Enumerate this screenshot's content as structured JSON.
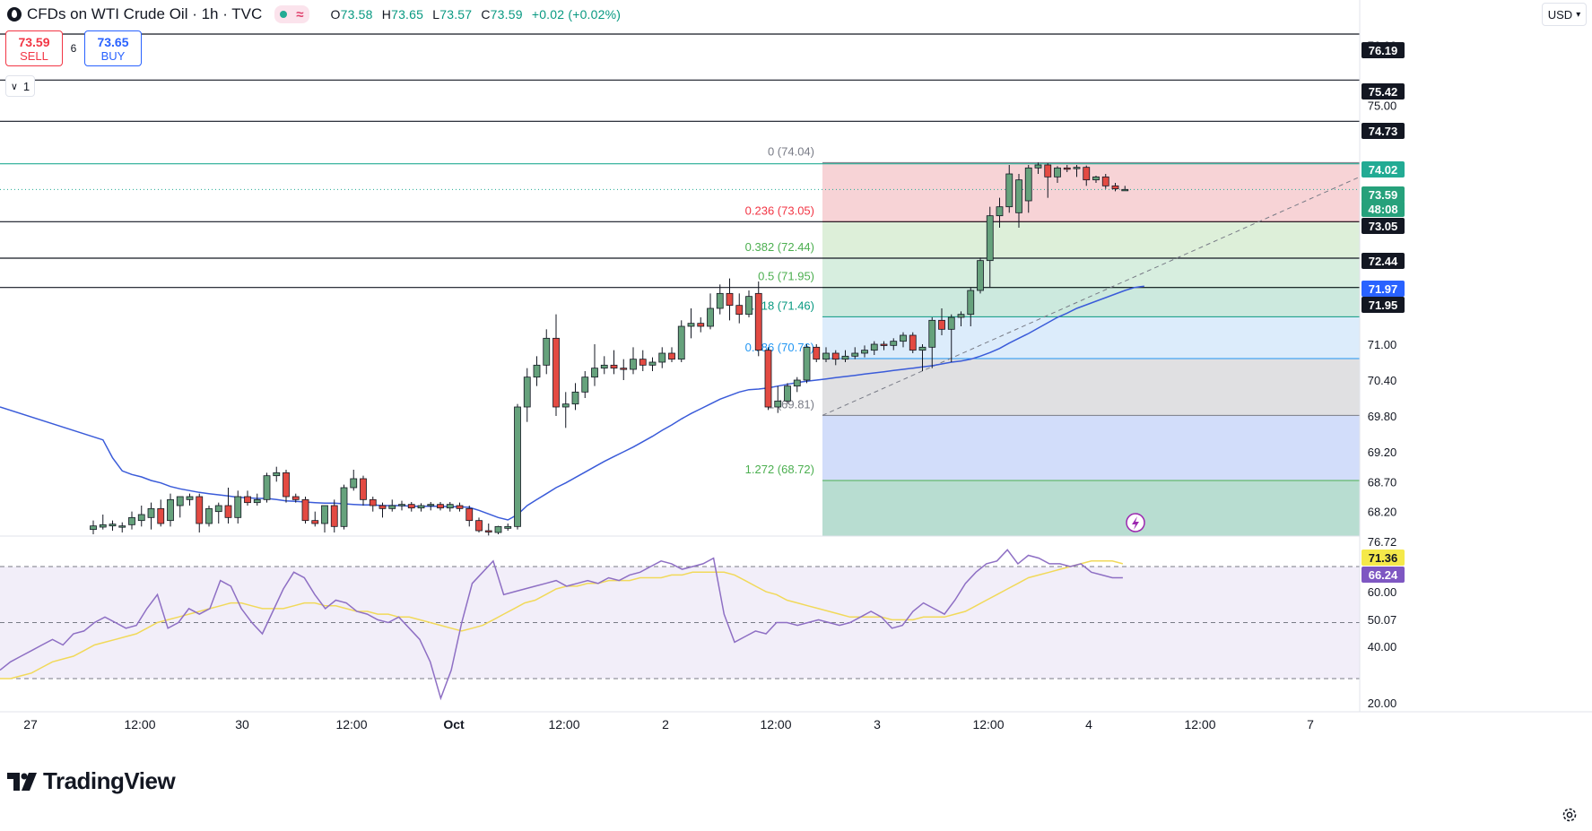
{
  "header": {
    "title": "CFDs on WTI Crude Oil · 1h · TVC",
    "ohlc": {
      "o_label": "O",
      "o": "73.58",
      "h_label": "H",
      "h": "73.65",
      "l_label": "L",
      "l": "73.57",
      "c_label": "C",
      "c": "73.59",
      "change": "+0.02 (+0.02%)"
    }
  },
  "trade": {
    "sell_price": "73.59",
    "sell_label": "SELL",
    "spread": "6",
    "buy_price": "73.65",
    "buy_label": "BUY"
  },
  "indicators_toggle": {
    "count": "1"
  },
  "currency": "USD",
  "brand": "TradingView",
  "colors": {
    "up": "#66a27c",
    "down": "#e34a42",
    "ma": "#3a5bd9",
    "rsi": "#8e6fc4",
    "rsi_ma": "#f1d95a",
    "accent": "#22ab94"
  },
  "chart_data": {
    "type": "candlestick",
    "price_axis": {
      "ticks": [
        "76.00",
        "75.00",
        "71.00",
        "70.40",
        "69.80",
        "69.20",
        "68.70",
        "68.20"
      ]
    },
    "x_labels": [
      "27",
      "12:00",
      "30",
      "12:00",
      "Oct",
      "12:00",
      "2",
      "12:00",
      "3",
      "12:00",
      "4",
      "12:00",
      "7"
    ],
    "candles": [
      {
        "o": 67.9,
        "h": 68.05,
        "l": 67.82,
        "c": 67.96
      },
      {
        "o": 67.94,
        "h": 68.15,
        "l": 67.9,
        "c": 67.98
      },
      {
        "o": 67.96,
        "h": 68.05,
        "l": 67.88,
        "c": 67.99
      },
      {
        "o": 67.95,
        "h": 68.02,
        "l": 67.85,
        "c": 67.96
      },
      {
        "o": 67.98,
        "h": 68.2,
        "l": 67.9,
        "c": 68.1
      },
      {
        "o": 68.05,
        "h": 68.3,
        "l": 67.95,
        "c": 68.15
      },
      {
        "o": 68.1,
        "h": 68.35,
        "l": 67.9,
        "c": 68.25
      },
      {
        "o": 68.25,
        "h": 68.4,
        "l": 67.95,
        "c": 68.0
      },
      {
        "o": 68.05,
        "h": 68.5,
        "l": 67.95,
        "c": 68.4
      },
      {
        "o": 68.3,
        "h": 68.45,
        "l": 68.1,
        "c": 68.45
      },
      {
        "o": 68.4,
        "h": 68.5,
        "l": 68.3,
        "c": 68.45
      },
      {
        "o": 68.45,
        "h": 68.5,
        "l": 67.85,
        "c": 68.0
      },
      {
        "o": 68.0,
        "h": 68.3,
        "l": 67.95,
        "c": 68.25
      },
      {
        "o": 68.2,
        "h": 68.35,
        "l": 68.0,
        "c": 68.3
      },
      {
        "o": 68.3,
        "h": 68.6,
        "l": 68.0,
        "c": 68.1
      },
      {
        "o": 68.1,
        "h": 68.55,
        "l": 68.0,
        "c": 68.45
      },
      {
        "o": 68.45,
        "h": 68.55,
        "l": 68.3,
        "c": 68.35
      },
      {
        "o": 68.35,
        "h": 68.5,
        "l": 68.3,
        "c": 68.4
      },
      {
        "o": 68.4,
        "h": 68.85,
        "l": 68.35,
        "c": 68.8
      },
      {
        "o": 68.8,
        "h": 68.95,
        "l": 68.7,
        "c": 68.85
      },
      {
        "o": 68.85,
        "h": 68.9,
        "l": 68.35,
        "c": 68.45
      },
      {
        "o": 68.45,
        "h": 68.5,
        "l": 68.35,
        "c": 68.4
      },
      {
        "o": 68.4,
        "h": 68.45,
        "l": 68.0,
        "c": 68.05
      },
      {
        "o": 68.05,
        "h": 68.2,
        "l": 67.95,
        "c": 68.0
      },
      {
        "o": 68.0,
        "h": 68.3,
        "l": 67.85,
        "c": 68.3
      },
      {
        "o": 68.3,
        "h": 68.4,
        "l": 67.85,
        "c": 67.95
      },
      {
        "o": 67.95,
        "h": 68.65,
        "l": 67.9,
        "c": 68.6
      },
      {
        "o": 68.6,
        "h": 68.9,
        "l": 68.55,
        "c": 68.75
      },
      {
        "o": 68.75,
        "h": 68.8,
        "l": 68.3,
        "c": 68.4
      },
      {
        "o": 68.4,
        "h": 68.45,
        "l": 68.2,
        "c": 68.3
      },
      {
        "o": 68.3,
        "h": 68.35,
        "l": 68.1,
        "c": 68.25
      },
      {
        "o": 68.25,
        "h": 68.4,
        "l": 68.2,
        "c": 68.3
      },
      {
        "o": 68.3,
        "h": 68.38,
        "l": 68.22,
        "c": 68.32
      },
      {
        "o": 68.32,
        "h": 68.36,
        "l": 68.2,
        "c": 68.26
      },
      {
        "o": 68.26,
        "h": 68.34,
        "l": 68.2,
        "c": 68.3
      },
      {
        "o": 68.3,
        "h": 68.36,
        "l": 68.22,
        "c": 68.32
      },
      {
        "o": 68.32,
        "h": 68.36,
        "l": 68.22,
        "c": 68.26
      },
      {
        "o": 68.26,
        "h": 68.36,
        "l": 68.2,
        "c": 68.32
      },
      {
        "o": 68.3,
        "h": 68.35,
        "l": 68.2,
        "c": 68.25
      },
      {
        "o": 68.25,
        "h": 68.3,
        "l": 67.95,
        "c": 68.05
      },
      {
        "o": 68.05,
        "h": 68.1,
        "l": 67.85,
        "c": 67.88
      },
      {
        "o": 67.88,
        "h": 68.0,
        "l": 67.8,
        "c": 67.86
      },
      {
        "o": 67.85,
        "h": 67.96,
        "l": 67.82,
        "c": 67.95
      },
      {
        "o": 67.92,
        "h": 68.0,
        "l": 67.88,
        "c": 67.95
      },
      {
        "o": 67.95,
        "h": 70.0,
        "l": 67.9,
        "c": 69.95
      },
      {
        "o": 69.95,
        "h": 70.6,
        "l": 69.7,
        "c": 70.45
      },
      {
        "o": 70.45,
        "h": 70.8,
        "l": 70.3,
        "c": 70.65
      },
      {
        "o": 70.65,
        "h": 71.25,
        "l": 70.5,
        "c": 71.1
      },
      {
        "o": 71.1,
        "h": 71.5,
        "l": 69.8,
        "c": 69.95
      },
      {
        "o": 69.95,
        "h": 70.2,
        "l": 69.6,
        "c": 70.0
      },
      {
        "o": 70.0,
        "h": 70.35,
        "l": 69.9,
        "c": 70.2
      },
      {
        "o": 70.2,
        "h": 70.55,
        "l": 70.1,
        "c": 70.45
      },
      {
        "o": 70.45,
        "h": 71.0,
        "l": 70.3,
        "c": 70.6
      },
      {
        "o": 70.6,
        "h": 70.8,
        "l": 70.5,
        "c": 70.65
      },
      {
        "o": 70.65,
        "h": 70.9,
        "l": 70.5,
        "c": 70.6
      },
      {
        "o": 70.6,
        "h": 70.75,
        "l": 70.4,
        "c": 70.58
      },
      {
        "o": 70.58,
        "h": 70.95,
        "l": 70.5,
        "c": 70.75
      },
      {
        "o": 70.75,
        "h": 70.9,
        "l": 70.55,
        "c": 70.65
      },
      {
        "o": 70.65,
        "h": 70.78,
        "l": 70.55,
        "c": 70.7
      },
      {
        "o": 70.7,
        "h": 70.95,
        "l": 70.6,
        "c": 70.85
      },
      {
        "o": 70.85,
        "h": 70.95,
        "l": 70.7,
        "c": 70.75
      },
      {
        "o": 70.75,
        "h": 71.4,
        "l": 70.7,
        "c": 71.3
      },
      {
        "o": 71.3,
        "h": 71.6,
        "l": 71.1,
        "c": 71.35
      },
      {
        "o": 71.35,
        "h": 71.45,
        "l": 71.2,
        "c": 71.3
      },
      {
        "o": 71.3,
        "h": 71.85,
        "l": 71.25,
        "c": 71.6
      },
      {
        "o": 71.6,
        "h": 72.0,
        "l": 71.5,
        "c": 71.85
      },
      {
        "o": 71.85,
        "h": 72.1,
        "l": 71.4,
        "c": 71.65
      },
      {
        "o": 71.65,
        "h": 71.85,
        "l": 71.35,
        "c": 71.5
      },
      {
        "o": 71.5,
        "h": 71.9,
        "l": 71.45,
        "c": 71.8
      },
      {
        "o": 71.85,
        "h": 72.05,
        "l": 70.8,
        "c": 70.9
      },
      {
        "o": 70.9,
        "h": 70.95,
        "l": 69.9,
        "c": 69.95
      },
      {
        "o": 69.95,
        "h": 70.3,
        "l": 69.85,
        "c": 70.05
      },
      {
        "o": 70.05,
        "h": 70.35,
        "l": 70.0,
        "c": 70.3
      },
      {
        "o": 70.3,
        "h": 70.45,
        "l": 70.2,
        "c": 70.4
      },
      {
        "o": 70.4,
        "h": 71.0,
        "l": 70.35,
        "c": 70.95
      },
      {
        "o": 70.95,
        "h": 71.0,
        "l": 70.7,
        "c": 70.75
      },
      {
        "o": 70.75,
        "h": 70.95,
        "l": 70.7,
        "c": 70.85
      },
      {
        "o": 70.85,
        "h": 70.9,
        "l": 70.65,
        "c": 70.75
      },
      {
        "o": 70.75,
        "h": 70.9,
        "l": 70.7,
        "c": 70.8
      },
      {
        "o": 70.8,
        "h": 70.95,
        "l": 70.75,
        "c": 70.85
      },
      {
        "o": 70.85,
        "h": 70.98,
        "l": 70.78,
        "c": 70.9
      },
      {
        "o": 70.9,
        "h": 71.05,
        "l": 70.82,
        "c": 71.0
      },
      {
        "o": 71.0,
        "h": 71.05,
        "l": 70.9,
        "c": 70.98
      },
      {
        "o": 70.98,
        "h": 71.1,
        "l": 70.9,
        "c": 71.05
      },
      {
        "o": 71.05,
        "h": 71.2,
        "l": 70.95,
        "c": 71.15
      },
      {
        "o": 71.15,
        "h": 71.2,
        "l": 70.85,
        "c": 70.9
      },
      {
        "o": 70.9,
        "h": 71.0,
        "l": 70.55,
        "c": 70.95
      },
      {
        "o": 70.95,
        "h": 71.45,
        "l": 70.6,
        "c": 71.4
      },
      {
        "o": 71.4,
        "h": 71.6,
        "l": 71.15,
        "c": 71.25
      },
      {
        "o": 71.25,
        "h": 71.5,
        "l": 70.7,
        "c": 71.45
      },
      {
        "o": 71.45,
        "h": 71.55,
        "l": 71.3,
        "c": 71.5
      },
      {
        "o": 71.5,
        "h": 71.95,
        "l": 71.3,
        "c": 71.9
      },
      {
        "o": 71.9,
        "h": 72.45,
        "l": 71.85,
        "c": 72.4
      },
      {
        "o": 72.4,
        "h": 73.3,
        "l": 71.95,
        "c": 73.15
      },
      {
        "o": 73.15,
        "h": 73.45,
        "l": 72.95,
        "c": 73.3
      },
      {
        "o": 73.3,
        "h": 74.0,
        "l": 73.2,
        "c": 73.85
      },
      {
        "o": 73.2,
        "h": 73.85,
        "l": 72.95,
        "c": 73.75
      },
      {
        "o": 73.4,
        "h": 74.0,
        "l": 73.2,
        "c": 73.95
      },
      {
        "o": 73.95,
        "h": 74.04,
        "l": 73.85,
        "c": 74.0
      },
      {
        "o": 74.0,
        "h": 74.03,
        "l": 73.45,
        "c": 73.8
      },
      {
        "o": 73.8,
        "h": 73.98,
        "l": 73.7,
        "c": 73.95
      },
      {
        "o": 73.95,
        "h": 74.0,
        "l": 73.88,
        "c": 73.94
      },
      {
        "o": 73.94,
        "h": 74.0,
        "l": 73.8,
        "c": 73.96
      },
      {
        "o": 73.96,
        "h": 73.99,
        "l": 73.65,
        "c": 73.75
      },
      {
        "o": 73.75,
        "h": 73.82,
        "l": 73.7,
        "c": 73.8
      },
      {
        "o": 73.8,
        "h": 73.85,
        "l": 73.6,
        "c": 73.65
      },
      {
        "o": 73.65,
        "h": 73.7,
        "l": 73.56,
        "c": 73.6
      },
      {
        "o": 73.58,
        "h": 73.65,
        "l": 73.57,
        "c": 73.59
      }
    ],
    "ma": [
      69.95,
      69.4,
      69.1,
      68.88,
      68.82,
      68.78,
      68.72,
      68.68,
      68.62,
      68.58,
      68.55,
      68.52,
      68.5,
      68.48,
      68.46,
      68.44,
      68.43,
      68.42,
      68.42,
      68.4,
      68.38,
      68.37,
      68.36,
      68.35,
      68.34,
      68.34,
      68.33,
      68.32,
      68.31,
      68.31,
      68.3,
      68.3,
      68.3,
      68.29,
      68.29,
      68.29,
      68.29,
      68.28,
      68.28,
      68.27,
      68.22,
      68.16,
      68.1,
      68.06,
      68.15,
      68.3,
      68.4,
      68.5,
      68.6,
      68.68,
      68.77,
      68.86,
      68.95,
      69.04,
      69.12,
      69.2,
      69.28,
      69.37,
      69.46,
      69.56,
      69.65,
      69.75,
      69.84,
      69.92,
      70.0,
      70.08,
      70.14,
      70.2,
      70.24,
      70.25,
      70.27,
      70.3,
      70.33,
      70.36,
      70.38,
      70.4,
      70.42,
      70.44,
      70.46,
      70.48,
      70.5,
      70.52,
      70.54,
      70.56,
      70.58,
      70.6,
      70.62,
      70.64,
      70.67,
      70.7,
      70.72,
      70.75,
      70.8,
      70.86,
      70.93,
      71.02,
      71.1,
      71.18,
      71.27,
      71.36,
      71.45,
      71.52,
      71.6,
      71.66,
      71.72,
      71.78,
      71.84,
      71.9,
      71.95,
      71.97
    ],
    "ma_label": "71.97",
    "price_labels": [
      {
        "value": "76.19",
        "bg": "#131722",
        "fg": "#ffffff"
      },
      {
        "value": "75.42",
        "bg": "#131722",
        "fg": "#ffffff"
      },
      {
        "value": "74.73",
        "bg": "#131722",
        "fg": "#ffffff"
      },
      {
        "value": "74.02",
        "bg": "#22ab94",
        "fg": "#ffffff"
      },
      {
        "value": "73.59",
        "bg": "#26a17b",
        "fg": "#ffffff"
      },
      {
        "value": "48:08",
        "bg": "#26a17b",
        "fg": "#ffffff"
      },
      {
        "value": "73.05",
        "bg": "#131722",
        "fg": "#ffffff"
      },
      {
        "value": "72.44",
        "bg": "#131722",
        "fg": "#ffffff"
      },
      {
        "value": "71.97",
        "bg": "#2962ff",
        "fg": "#ffffff"
      },
      {
        "value": "71.95",
        "bg": "#131722",
        "fg": "#ffffff"
      }
    ],
    "horizontal_lines": [
      76.19,
      75.42,
      74.73,
      73.05,
      72.44,
      71.95
    ],
    "fib": {
      "levels": [
        {
          "ratio": "0",
          "value": "74.04",
          "label": "0 (74.04)",
          "color": "#787b86",
          "fill": "#f7d3d6"
        },
        {
          "ratio": "0.236",
          "value": "73.05",
          "label": "0.236 (73.05)",
          "color": "#f23645",
          "fill": "#ddefd9"
        },
        {
          "ratio": "0.382",
          "value": "72.44",
          "label": "0.382 (72.44)",
          "color": "#4caf50",
          "fill": "#d7eedf"
        },
        {
          "ratio": "0.5",
          "value": "71.95",
          "label": "0.5 (71.95)",
          "color": "#4caf50",
          "fill": "#cce9de"
        },
        {
          "ratio": "0.618",
          "value": "71.46",
          "label": "0.618 (71.46)",
          "color": "#089981",
          "fill": "#dcecfb"
        },
        {
          "ratio": "0.786",
          "value": "70.76",
          "label": "0.786 (70.76)",
          "color": "#2196f3",
          "fill": "#e0e0e2"
        },
        {
          "ratio": "1",
          "value": "69.81",
          "label": "1 (69.81)",
          "color": "#787b86",
          "fill": "#d2ddfa"
        },
        {
          "ratio": "1.272",
          "value": "68.72",
          "label": "1.272 (68.72)",
          "color": "#4caf50",
          "fill": "#b8ddd1"
        }
      ]
    },
    "rsi": {
      "axis_ticks": [
        "76.72",
        "60.00",
        "50.07",
        "40.00",
        "20.00"
      ],
      "labels": [
        {
          "value": "71.36",
          "bg": "#f5e94a",
          "fg": "#131722"
        },
        {
          "value": "66.24",
          "bg": "#7e57c2",
          "fg": "#ffffff"
        }
      ],
      "bands": [
        70,
        50,
        30
      ],
      "values": [
        33,
        36,
        38,
        40,
        42,
        44,
        42,
        46,
        47,
        50,
        52,
        50,
        48,
        49,
        55,
        60,
        48,
        50,
        55,
        53,
        55,
        65,
        63,
        55,
        50,
        46,
        54,
        62,
        68,
        66,
        60,
        55,
        58,
        57,
        54,
        53,
        51,
        50,
        52,
        48,
        44,
        36,
        23,
        33,
        50,
        64,
        68,
        72,
        60,
        61,
        62,
        63,
        64,
        65,
        63,
        64,
        65,
        64,
        66,
        65,
        67,
        68,
        70,
        72,
        71,
        69,
        70,
        71,
        73,
        53,
        43,
        45,
        47,
        46,
        50,
        50,
        49,
        50,
        51,
        50,
        49,
        50,
        52,
        54,
        52,
        48,
        49,
        54,
        57,
        55,
        53,
        58,
        64,
        68,
        71,
        72,
        76,
        71,
        74,
        73,
        71,
        71,
        70,
        71,
        68,
        67,
        66,
        66
      ],
      "ma": [
        30,
        30,
        31,
        32,
        34,
        36,
        37,
        38,
        40,
        42,
        43,
        44,
        45,
        46,
        48,
        50,
        51,
        52,
        53,
        54,
        55,
        56,
        57,
        57,
        56,
        55,
        55,
        55,
        56,
        57,
        57,
        56,
        56,
        55,
        54,
        54,
        53,
        53,
        52,
        52,
        51,
        50,
        49,
        48,
        47,
        48,
        49,
        51,
        53,
        55,
        57,
        58,
        60,
        62,
        63,
        63,
        64,
        64,
        65,
        65,
        65,
        66,
        66,
        66,
        67,
        67,
        68,
        68,
        68,
        68,
        67,
        65,
        63,
        61,
        60,
        58,
        57,
        56,
        55,
        54,
        53,
        52,
        52,
        52,
        52,
        51,
        51,
        51,
        52,
        52,
        52,
        53,
        54,
        56,
        58,
        60,
        62,
        64,
        66,
        67,
        68,
        69,
        70,
        71,
        72,
        72,
        72,
        71
      ]
    }
  }
}
